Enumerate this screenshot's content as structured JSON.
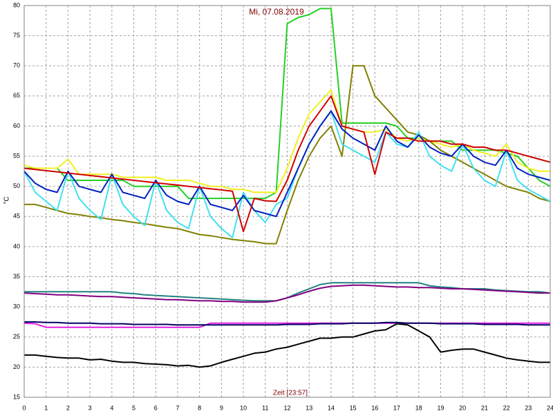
{
  "chart_data": {
    "type": "line",
    "title": "Mi, 07.08.2019",
    "x_label": "Zeit [23:57]",
    "y_label": "°C",
    "grid": true,
    "xlim": [
      0,
      24
    ],
    "ylim": [
      15,
      80
    ],
    "xticks": [
      0,
      1,
      2,
      3,
      4,
      5,
      6,
      7,
      8,
      9,
      10,
      11,
      12,
      13,
      14,
      15,
      16,
      17,
      18,
      19,
      20,
      21,
      22,
      23,
      24
    ],
    "yticks": [
      15,
      20,
      25,
      30,
      35,
      40,
      45,
      50,
      55,
      60,
      65,
      70,
      75,
      80
    ],
    "x": [
      0,
      0.5,
      1,
      1.5,
      2,
      2.5,
      3,
      3.5,
      4,
      4.5,
      5,
      5.5,
      6,
      6.5,
      7,
      7.5,
      8,
      8.5,
      9,
      9.5,
      10,
      10.5,
      11,
      11.5,
      12,
      12.5,
      13,
      13.5,
      14,
      14.5,
      15,
      15.5,
      16,
      16.5,
      17,
      17.5,
      18,
      18.5,
      19,
      19.5,
      20,
      20.5,
      21,
      21.5,
      22,
      22.5,
      23,
      23.5,
      24
    ],
    "series": [
      {
        "color": "#22d022",
        "values": [
          53,
          53,
          53,
          53,
          51,
          51,
          51,
          51,
          51,
          51,
          50,
          50,
          50,
          50,
          50,
          48,
          48,
          48,
          48,
          48,
          48,
          48,
          48,
          49,
          77,
          78,
          78.5,
          79.5,
          79.5,
          60.5,
          60.5,
          60.5,
          60.5,
          60.5,
          60,
          58,
          58,
          57.5,
          57.5,
          57.5,
          56,
          56,
          56,
          56,
          55.5,
          55,
          53,
          51,
          50
        ]
      },
      {
        "color": "#f0f020",
        "values": [
          53.5,
          53,
          53,
          53,
          54.5,
          52,
          52,
          52,
          52,
          51.5,
          51.5,
          51.5,
          51.5,
          51,
          51,
          51,
          50.5,
          50,
          50,
          49.5,
          49.5,
          49,
          49,
          49,
          53,
          58,
          62,
          64,
          66,
          60,
          59.5,
          59,
          59,
          59.5,
          58,
          57.5,
          58,
          57.5,
          57,
          56.5,
          57,
          56,
          55.5,
          55,
          57,
          54,
          53,
          52.5,
          52.5
        ]
      },
      {
        "color": "#808000",
        "values": [
          47,
          47,
          46.5,
          46,
          45.5,
          45.3,
          45,
          44.8,
          44.5,
          44.3,
          44,
          43.8,
          43.5,
          43.2,
          43,
          42.5,
          42,
          41.8,
          41.5,
          41.2,
          41,
          40.8,
          40.5,
          40.5,
          46,
          51,
          55,
          58,
          60,
          55,
          70,
          70,
          65,
          63,
          61,
          59,
          58.5,
          57.5,
          56,
          55,
          54,
          53,
          52,
          51,
          50,
          49.5,
          49,
          48,
          47.5
        ]
      },
      {
        "color": "#40e0f0",
        "values": [
          52.5,
          49,
          47.5,
          46,
          52.5,
          48,
          46,
          44.5,
          52,
          47,
          45,
          43.5,
          51,
          46,
          44,
          43,
          50,
          45,
          43,
          41.5,
          49,
          46,
          44,
          47,
          48,
          53,
          57,
          60,
          62.5,
          57,
          56,
          55,
          54,
          59,
          57,
          56.5,
          59,
          55,
          53.5,
          52.5,
          57,
          53,
          51,
          50,
          56,
          51,
          49.5,
          48.5,
          47.5
        ]
      },
      {
        "color": "#0020c0",
        "values": [
          52.5,
          50.5,
          49.5,
          49,
          52.5,
          50,
          49.5,
          49,
          52,
          49,
          48.5,
          48,
          51,
          48.5,
          47.5,
          47,
          50,
          47,
          46.5,
          46,
          48.5,
          46,
          45.5,
          45,
          49,
          53,
          57,
          60,
          62.5,
          59.5,
          58,
          57,
          56,
          60,
          57.5,
          56.5,
          58.5,
          56.5,
          55.5,
          55,
          57,
          55,
          54,
          53.5,
          56,
          53,
          52,
          51.5,
          51
        ]
      },
      {
        "color": "#d00000",
        "values": [
          53,
          52.8,
          52.6,
          52.4,
          52.2,
          52,
          51.8,
          51.6,
          51.4,
          51.2,
          51,
          50.8,
          50.6,
          50.4,
          50.2,
          50,
          49.8,
          49.6,
          49.4,
          49.2,
          42.5,
          48,
          47.6,
          47.5,
          51,
          56,
          60,
          62.5,
          65,
          60,
          59.5,
          59,
          52,
          59,
          58,
          58,
          57.5,
          57.5,
          57.5,
          57,
          57,
          56.5,
          56.5,
          56,
          56,
          55.5,
          55,
          54.5,
          54
        ]
      },
      {
        "color": "#208080",
        "values": [
          32.5,
          32.5,
          32.5,
          32.5,
          32.5,
          32.5,
          32.5,
          32.5,
          32.5,
          32.3,
          32.2,
          32,
          31.9,
          31.8,
          31.7,
          31.6,
          31.5,
          31.4,
          31.3,
          31.2,
          31.1,
          31,
          31,
          31,
          31.5,
          32.3,
          33,
          33.7,
          34,
          34,
          34,
          34,
          34,
          34,
          34,
          34,
          34,
          33.5,
          33.3,
          33.2,
          33,
          33,
          33,
          32.8,
          32.7,
          32.6,
          32.5,
          32.5,
          32.3
        ]
      },
      {
        "color": "#800080",
        "values": [
          32.3,
          32.2,
          32.1,
          32,
          32,
          31.9,
          31.8,
          31.7,
          31.7,
          31.6,
          31.5,
          31.4,
          31.3,
          31.2,
          31.2,
          31.1,
          31,
          31,
          30.9,
          30.9,
          30.8,
          30.8,
          30.8,
          31,
          31.5,
          32,
          32.6,
          33.1,
          33.4,
          33.5,
          33.6,
          33.6,
          33.5,
          33.4,
          33.3,
          33.3,
          33.2,
          33.2,
          33.1,
          33,
          33,
          32.9,
          32.8,
          32.7,
          32.6,
          32.5,
          32.4,
          32.3,
          32.3
        ]
      },
      {
        "color": "#e020e0",
        "values": [
          27.3,
          27.2,
          26.6,
          26.6,
          26.6,
          26.6,
          26.6,
          26.6,
          26.6,
          26.6,
          26.6,
          26.6,
          26.6,
          26.6,
          26.6,
          26.6,
          26.6,
          27.3,
          27.3,
          27.3,
          27.3,
          27.3,
          27.3,
          27.3,
          27.3,
          27.3,
          27.3,
          27.3,
          27.3,
          27.3,
          27.3,
          27.3,
          27.3,
          27.3,
          27.3,
          27.3,
          27.3,
          27.3,
          27.3,
          27.3,
          27.3,
          27.3,
          27.3,
          27.3,
          27.3,
          27.3,
          27.3,
          27.3,
          27.3
        ]
      },
      {
        "color": "#000060",
        "values": [
          27.5,
          27.5,
          27.4,
          27.4,
          27.3,
          27.3,
          27.3,
          27.2,
          27.2,
          27.2,
          27.1,
          27.1,
          27.1,
          27.1,
          27,
          27,
          27,
          27,
          27,
          27,
          27,
          27,
          27,
          27,
          27.1,
          27.1,
          27.1,
          27.2,
          27.2,
          27.2,
          27.3,
          27.3,
          27.3,
          27.4,
          27.4,
          27.3,
          27.3,
          27.3,
          27.2,
          27.2,
          27.2,
          27.2,
          27.1,
          27.1,
          27.1,
          27.1,
          27,
          27,
          27
        ]
      },
      {
        "color": "#000000",
        "values": [
          22,
          22,
          21.8,
          21.6,
          21.5,
          21.5,
          21.2,
          21.3,
          21,
          20.8,
          20.8,
          20.6,
          20.5,
          20.4,
          20.2,
          20.3,
          20,
          20.2,
          20.8,
          21.3,
          21.8,
          22.3,
          22.5,
          23,
          23.3,
          23.8,
          24.3,
          24.8,
          24.8,
          25,
          25,
          25.5,
          26,
          26.2,
          27.2,
          27,
          26,
          25,
          22.5,
          22.8,
          23,
          23,
          22.5,
          22,
          21.5,
          21.2,
          21,
          20.8,
          20.8
        ]
      }
    ]
  }
}
